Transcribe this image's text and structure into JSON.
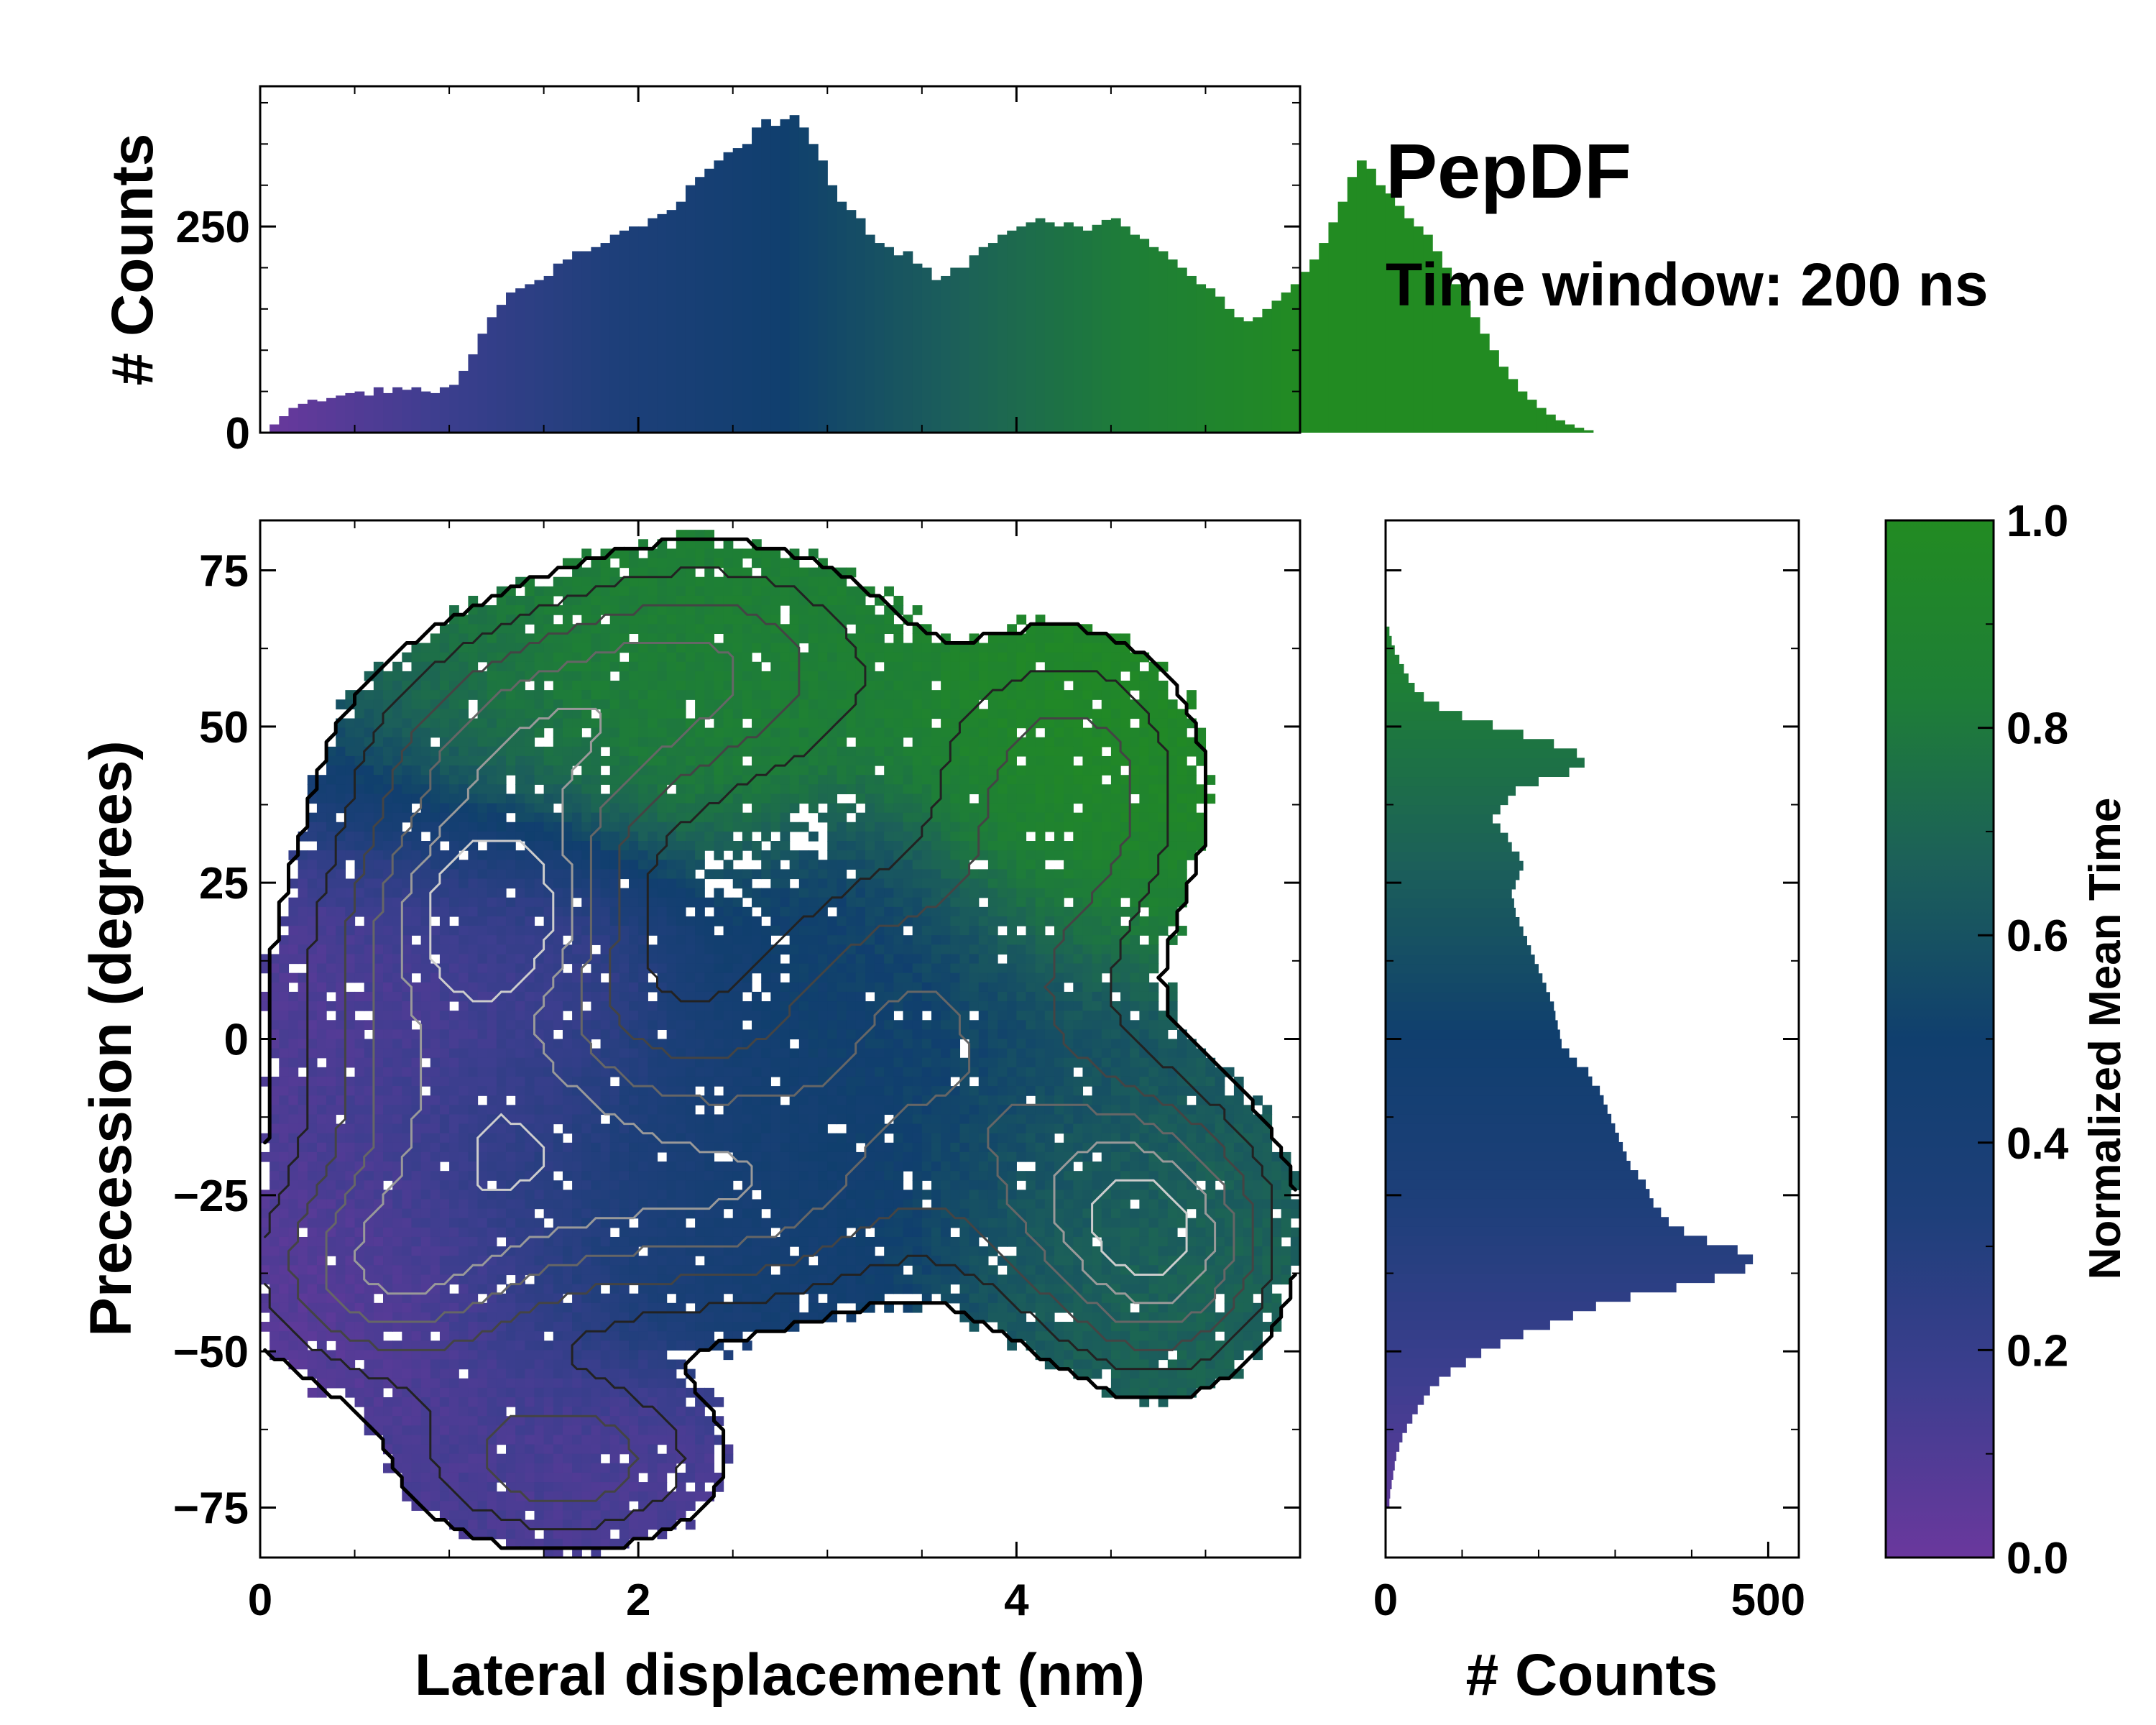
{
  "chart_data": [
    {
      "id": "top-hist",
      "type": "bar",
      "title": "",
      "xlabel": "",
      "ylabel": "# Counts",
      "xlim": [
        0,
        5.5
      ],
      "ylim": [
        0,
        420
      ],
      "y_ticks": [
        0,
        250
      ],
      "y_tick_labels": [
        "0",
        "250"
      ],
      "bin_width": 0.05,
      "x_start": 0.0,
      "values": [
        0,
        10,
        20,
        30,
        35,
        40,
        38,
        42,
        45,
        48,
        50,
        45,
        55,
        48,
        55,
        52,
        55,
        50,
        48,
        55,
        58,
        75,
        95,
        120,
        140,
        155,
        170,
        175,
        180,
        185,
        190,
        205,
        210,
        220,
        220,
        225,
        230,
        240,
        245,
        250,
        250,
        260,
        265,
        270,
        280,
        300,
        310,
        320,
        330,
        340,
        345,
        350,
        370,
        380,
        372,
        380,
        385,
        370,
        350,
        330,
        300,
        280,
        270,
        260,
        240,
        230,
        225,
        215,
        220,
        205,
        200,
        185,
        190,
        200,
        200,
        215,
        225,
        230,
        240,
        245,
        250,
        255,
        260,
        255,
        250,
        255,
        250,
        245,
        252,
        258,
        260,
        250,
        240,
        235,
        225,
        220,
        210,
        200,
        190,
        180,
        175,
        165,
        150,
        140,
        135,
        140,
        150,
        160,
        170,
        180,
        195,
        210,
        230,
        255,
        280,
        310,
        330,
        320,
        300,
        290,
        275,
        260,
        250,
        240,
        220,
        200,
        180,
        160,
        140,
        120,
        100,
        80,
        65,
        50,
        40,
        30,
        22,
        15,
        10,
        6,
        3,
        0
      ],
      "series_colormap": "Normalized Mean Time"
    },
    {
      "id": "right-hist",
      "type": "bar",
      "orientation": "horizontal",
      "xlabel": "# Counts",
      "ylabel": "",
      "xlim": [
        0,
        540
      ],
      "ylim": [
        -83,
        83
      ],
      "x_ticks": [
        0,
        500
      ],
      "x_tick_labels": [
        "0",
        "500"
      ],
      "bin_width_degrees": 1.5,
      "y_start": -75,
      "values": [
        5,
        6,
        8,
        10,
        12,
        14,
        18,
        22,
        28,
        35,
        42,
        50,
        58,
        70,
        85,
        105,
        125,
        150,
        180,
        215,
        245,
        275,
        320,
        380,
        430,
        470,
        480,
        460,
        420,
        390,
        370,
        360,
        350,
        345,
        340,
        330,
        320,
        315,
        310,
        305,
        300,
        295,
        290,
        285,
        280,
        270,
        265,
        250,
        240,
        230,
        228,
        225,
        222,
        220,
        215,
        210,
        205,
        200,
        195,
        190,
        185,
        180,
        175,
        170,
        168,
        165,
        170,
        175,
        180,
        175,
        165,
        160,
        150,
        140,
        150,
        160,
        170,
        200,
        240,
        260,
        250,
        220,
        180,
        140,
        100,
        70,
        50,
        38,
        30,
        24,
        18,
        12,
        8,
        5
      ],
      "series_colormap": "Normalized Mean Time"
    },
    {
      "id": "main-heatmap",
      "type": "heatmap",
      "title": "",
      "xlabel": "Lateral displacement (nm)",
      "ylabel": "Precession (degrees)",
      "xlim": [
        0,
        5.5
      ],
      "ylim": [
        -83,
        83
      ],
      "x_ticks": [
        0,
        2,
        4
      ],
      "x_tick_labels": [
        "0",
        "2",
        "4"
      ],
      "y_ticks": [
        75,
        50,
        25,
        0,
        -25,
        -50,
        -75
      ],
      "y_tick_labels": [
        "75",
        "50",
        "25",
        "0",
        "−25",
        "−50",
        "−75"
      ],
      "colormap": [
        "#6a389d",
        "#3d3e8f",
        "#1e3f7a",
        "#103f6e",
        "#1c6059",
        "#1e7e37",
        "#228b22"
      ],
      "clusters": [
        {
          "x": 0.9,
          "y": 5,
          "sx": 0.6,
          "sy": 24,
          "t": 0.08
        },
        {
          "x": 0.6,
          "y": -38,
          "sx": 0.5,
          "sy": 12,
          "t": 0.06
        },
        {
          "x": 1.6,
          "y": -68,
          "sx": 0.6,
          "sy": 10,
          "t": 0.12
        },
        {
          "x": 1.5,
          "y": -20,
          "sx": 0.6,
          "sy": 18,
          "t": 0.3
        },
        {
          "x": 2.6,
          "y": -25,
          "sx": 0.6,
          "sy": 14,
          "t": 0.45
        },
        {
          "x": 3.4,
          "y": 5,
          "sx": 0.7,
          "sy": 18,
          "t": 0.5
        },
        {
          "x": 4.4,
          "y": -25,
          "sx": 0.6,
          "sy": 16,
          "t": 0.62
        },
        {
          "x": 4.8,
          "y": -35,
          "sx": 0.4,
          "sy": 14,
          "t": 0.7
        },
        {
          "x": 1.4,
          "y": 45,
          "sx": 0.6,
          "sy": 14,
          "t": 0.82
        },
        {
          "x": 2.4,
          "y": 60,
          "sx": 0.7,
          "sy": 14,
          "t": 0.85
        },
        {
          "x": 4.3,
          "y": 40,
          "sx": 0.5,
          "sy": 18,
          "t": 0.95
        },
        {
          "x": 1.3,
          "y": 20,
          "sx": 0.4,
          "sy": 10,
          "t": 0.2
        }
      ]
    },
    {
      "id": "colorbar",
      "type": "colorbar",
      "ylabel": "Normalized Mean Time",
      "ylim": [
        0.0,
        1.0
      ],
      "y_ticks": [
        0.0,
        0.2,
        0.4,
        0.6,
        0.8,
        1.0
      ],
      "y_tick_labels": [
        "0.0",
        "0.2",
        "0.4",
        "0.6",
        "0.8",
        "1.0"
      ],
      "colors": [
        "#6a389d",
        "#3d3e8f",
        "#1e3f7a",
        "#103f6e",
        "#1c6059",
        "#1e7e37",
        "#228b22"
      ]
    }
  ],
  "annotations": {
    "title": "PepDF",
    "subtitle": "Time window: 200 ns"
  }
}
